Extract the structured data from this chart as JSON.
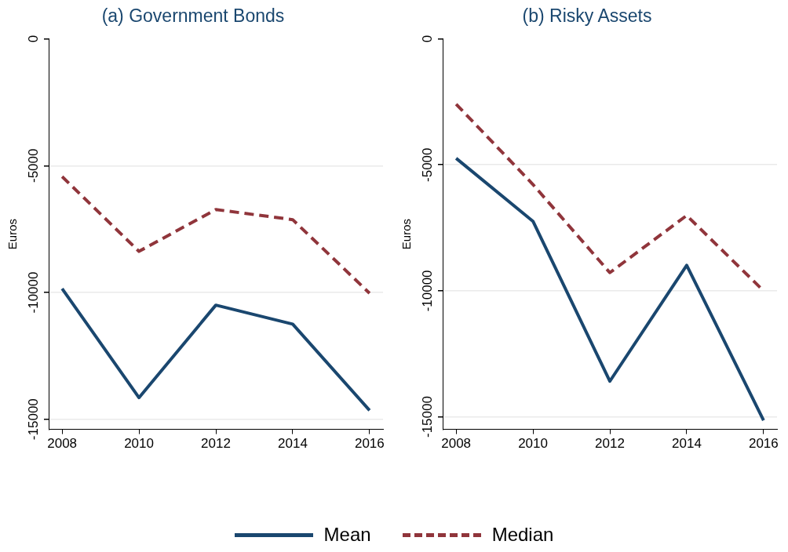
{
  "chart_data": [
    {
      "type": "line",
      "title": "(a) Government Bonds",
      "ylabel": "Euros",
      "x": [
        2008,
        2010,
        2012,
        2014,
        2016
      ],
      "xlim": [
        2007.65,
        2016.35
      ],
      "xticks": [
        2008,
        2010,
        2012,
        2014,
        2016
      ],
      "ylim": [
        -15400,
        0
      ],
      "yticks": [
        {
          "value": -15000,
          "label": "-15000"
        },
        {
          "value": -10000,
          "label": "-10000"
        },
        {
          "value": -5000,
          "label": "-5000"
        },
        0
      ],
      "grid": "y",
      "legend": "bottom",
      "marker": "none",
      "series": [
        {
          "name": "Mean",
          "color": "#1a476f",
          "line_style": "solid",
          "values": [
            -9850,
            -14150,
            -10500,
            -11250,
            -14650
          ]
        },
        {
          "name": "Median",
          "color": "#90353b",
          "line_style": "dashed",
          "values": [
            -5430,
            -8380,
            -6730,
            -7130,
            -10030
          ]
        }
      ]
    },
    {
      "type": "line",
      "title": "(b) Risky Assets",
      "ylabel": "Euros",
      "x": [
        2008,
        2010,
        2012,
        2014,
        2016
      ],
      "xlim": [
        2007.65,
        2016.35
      ],
      "xticks": [
        2008,
        2010,
        2012,
        2014,
        2016
      ],
      "ylim": [
        -15500,
        0
      ],
      "yticks": [
        {
          "value": -15000,
          "label": "-15000"
        },
        {
          "value": -10000,
          "label": "-10000"
        },
        {
          "value": -5000,
          "label": "-5000"
        },
        0
      ],
      "grid": "y",
      "legend": "bottom",
      "marker": "none",
      "series": [
        {
          "name": "Mean",
          "color": "#1a476f",
          "line_style": "solid",
          "values": [
            -4740,
            -7240,
            -13590,
            -8990,
            -15140
          ]
        },
        {
          "name": "Median",
          "color": "#90353b",
          "line_style": "dashed",
          "values": [
            -2590,
            -5780,
            -9280,
            -7010,
            -10000
          ]
        }
      ]
    }
  ]
}
